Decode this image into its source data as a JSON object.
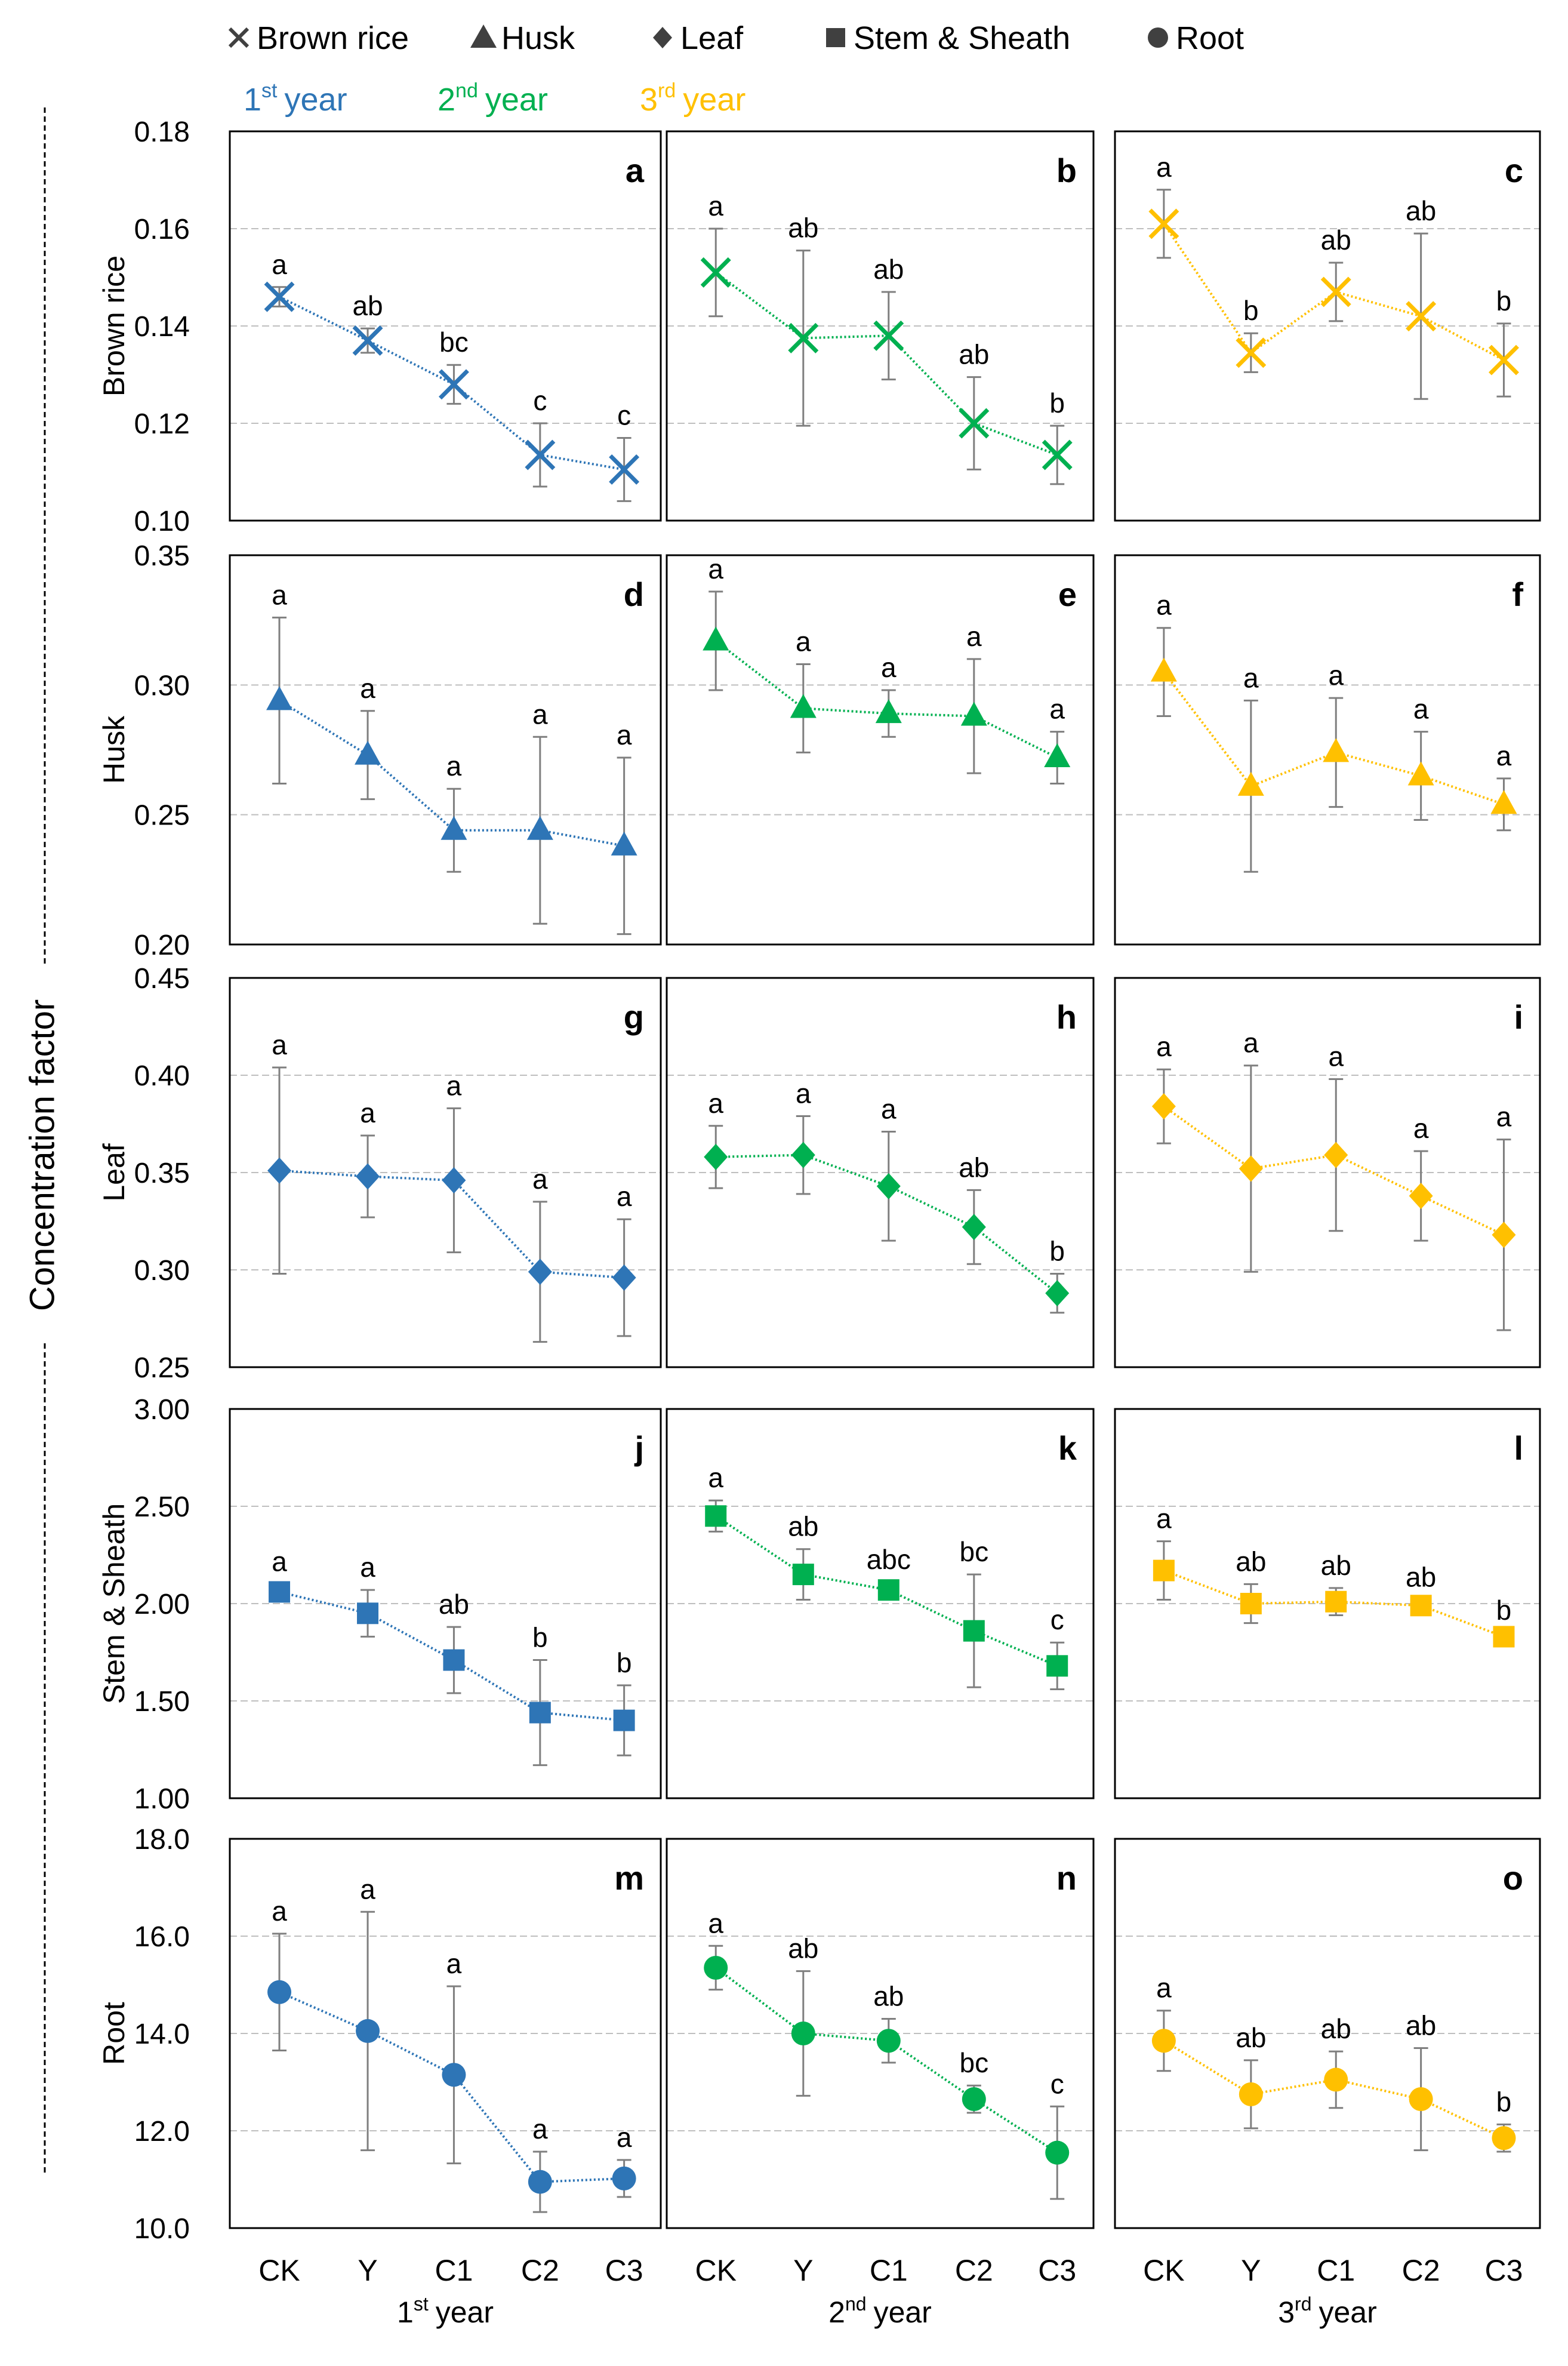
{
  "legend": {
    "markers": [
      {
        "name": "Brown rice",
        "symbol": "x"
      },
      {
        "name": "Husk",
        "symbol": "triangle"
      },
      {
        "name": "Leaf",
        "symbol": "diamond"
      },
      {
        "name": "Stem & Sheath",
        "symbol": "square"
      },
      {
        "name": "Root",
        "symbol": "circle"
      }
    ],
    "years": [
      {
        "base": "1",
        "sup": "st",
        "word": "year",
        "color": "#2E75B6"
      },
      {
        "base": "2",
        "sup": "nd",
        "word": "year",
        "color": "#00B050"
      },
      {
        "base": "3",
        "sup": "rd",
        "word": "year",
        "color": "#FFC000"
      }
    ]
  },
  "y_axis_title": "Concentration factor",
  "marker_color": "#404040",
  "gridline_color": "#BFBFBF",
  "errorbar_color": "#7F7F7F",
  "colors": [
    "#2E75B6",
    "#00B050",
    "#FFC000"
  ],
  "chart_data": {
    "type": "line",
    "categories": [
      "CK",
      "Y",
      "C1",
      "C2",
      "C3"
    ],
    "column_labels": [
      {
        "base": "1",
        "sup": "st",
        "word": "year"
      },
      {
        "base": "2",
        "sup": "nd",
        "word": "year"
      },
      {
        "base": "3",
        "sup": "rd",
        "word": "year"
      }
    ],
    "rows": [
      {
        "name": "Brown rice",
        "marker": "x",
        "ylim": [
          0.1,
          0.18
        ],
        "ticks": [
          "0.10",
          "0.12",
          "0.14",
          "0.16",
          "0.18"
        ],
        "panels": [
          {
            "id": "a",
            "values": [
              0.146,
              0.137,
              0.128,
              0.1135,
              0.1105
            ],
            "errors": [
              0.002,
              0.0025,
              0.004,
              0.0065,
              0.0065
            ],
            "letters": [
              "a",
              "ab",
              "bc",
              "c",
              "c"
            ]
          },
          {
            "id": "b",
            "values": [
              0.151,
              0.1375,
              0.138,
              0.12,
              0.1135
            ],
            "errors": [
              0.009,
              0.018,
              0.009,
              0.0095,
              0.006
            ],
            "letters": [
              "a",
              "ab",
              "ab",
              "ab",
              "b"
            ]
          },
          {
            "id": "c",
            "values": [
              0.161,
              0.1345,
              0.147,
              0.142,
              0.133
            ],
            "errors": [
              0.007,
              0.004,
              0.006,
              0.017,
              0.0075
            ],
            "letters": [
              "a",
              "b",
              "ab",
              "ab",
              "b"
            ]
          }
        ]
      },
      {
        "name": "Husk",
        "marker": "triangle",
        "ylim": [
          0.2,
          0.35
        ],
        "ticks": [
          "0.20",
          "0.25",
          "0.30",
          "0.35"
        ],
        "panels": [
          {
            "id": "d",
            "values": [
              0.294,
              0.273,
              0.244,
              0.244,
              0.238
            ],
            "errors": [
              0.032,
              0.017,
              0.016,
              0.036,
              0.034
            ],
            "letters": [
              "a",
              "a",
              "a",
              "a",
              "a"
            ]
          },
          {
            "id": "e",
            "values": [
              0.317,
              0.291,
              0.289,
              0.288,
              0.272
            ],
            "errors": [
              0.019,
              0.017,
              0.009,
              0.022,
              0.01
            ],
            "letters": [
              "a",
              "a",
              "a",
              "a",
              "a"
            ]
          },
          {
            "id": "f",
            "values": [
              0.305,
              0.261,
              0.274,
              0.265,
              0.254
            ],
            "errors": [
              0.017,
              0.033,
              0.021,
              0.017,
              0.01
            ],
            "letters": [
              "a",
              "a",
              "a",
              "a",
              "a"
            ]
          }
        ]
      },
      {
        "name": "Leaf",
        "marker": "diamond",
        "ylim": [
          0.25,
          0.45
        ],
        "ticks": [
          "0.25",
          "0.30",
          "0.35",
          "0.40",
          "0.45"
        ],
        "panels": [
          {
            "id": "g",
            "values": [
              0.351,
              0.348,
              0.346,
              0.299,
              0.296
            ],
            "errors": [
              0.053,
              0.021,
              0.037,
              0.036,
              0.03
            ],
            "letters": [
              "a",
              "a",
              "a",
              "a",
              "a"
            ]
          },
          {
            "id": "h",
            "values": [
              0.358,
              0.359,
              0.343,
              0.322,
              0.288
            ],
            "errors": [
              0.016,
              0.02,
              0.028,
              0.019,
              0.01
            ],
            "letters": [
              "a",
              "a",
              "a",
              "ab",
              "b"
            ]
          },
          {
            "id": "i",
            "values": [
              0.384,
              0.352,
              0.359,
              0.338,
              0.318
            ],
            "errors": [
              0.019,
              0.053,
              0.039,
              0.023,
              0.049
            ],
            "letters": [
              "a",
              "a",
              "a",
              "a",
              "a"
            ]
          }
        ]
      },
      {
        "name": "Stem & Sheath",
        "marker": "square",
        "ylim": [
          1.0,
          3.0
        ],
        "ticks": [
          "1.00",
          "1.50",
          "2.00",
          "2.50",
          "3.00"
        ],
        "panels": [
          {
            "id": "j",
            "values": [
              2.06,
              1.95,
              1.71,
              1.44,
              1.4
            ],
            "errors": [
              0.04,
              0.12,
              0.17,
              0.27,
              0.18
            ],
            "letters": [
              "a",
              "a",
              "ab",
              "b",
              "b"
            ]
          },
          {
            "id": "k",
            "values": [
              2.45,
              2.15,
              2.07,
              1.86,
              1.68
            ],
            "errors": [
              0.08,
              0.13,
              0.04,
              0.29,
              0.12
            ],
            "letters": [
              "a",
              "ab",
              "abc",
              "bc",
              "c"
            ]
          },
          {
            "id": "l",
            "values": [
              2.17,
              2.0,
              2.01,
              1.99,
              1.83
            ],
            "errors": [
              0.15,
              0.1,
              0.07,
              0.03,
              0.02
            ],
            "letters": [
              "a",
              "ab",
              "ab",
              "ab",
              "b"
            ]
          }
        ]
      },
      {
        "name": "Root",
        "marker": "circle",
        "ylim": [
          10.0,
          18.0
        ],
        "ticks": [
          "10.0",
          "12.0",
          "14.0",
          "16.0",
          "18.0"
        ],
        "panels": [
          {
            "id": "m",
            "values": [
              14.85,
              14.05,
              13.15,
              10.95,
              11.02
            ],
            "errors": [
              1.2,
              2.45,
              1.82,
              0.62,
              0.38
            ],
            "letters": [
              "a",
              "a",
              "a",
              "a",
              "a"
            ]
          },
          {
            "id": "n",
            "values": [
              15.35,
              14.0,
              13.85,
              12.65,
              11.55
            ],
            "errors": [
              0.45,
              1.28,
              0.45,
              0.28,
              0.95
            ],
            "letters": [
              "a",
              "ab",
              "ab",
              "bc",
              "c"
            ]
          },
          {
            "id": "o",
            "values": [
              13.85,
              12.75,
              13.05,
              12.65,
              11.85
            ],
            "errors": [
              0.62,
              0.7,
              0.58,
              1.05,
              0.28
            ],
            "letters": [
              "a",
              "ab",
              "ab",
              "ab",
              "b"
            ]
          }
        ]
      }
    ]
  }
}
